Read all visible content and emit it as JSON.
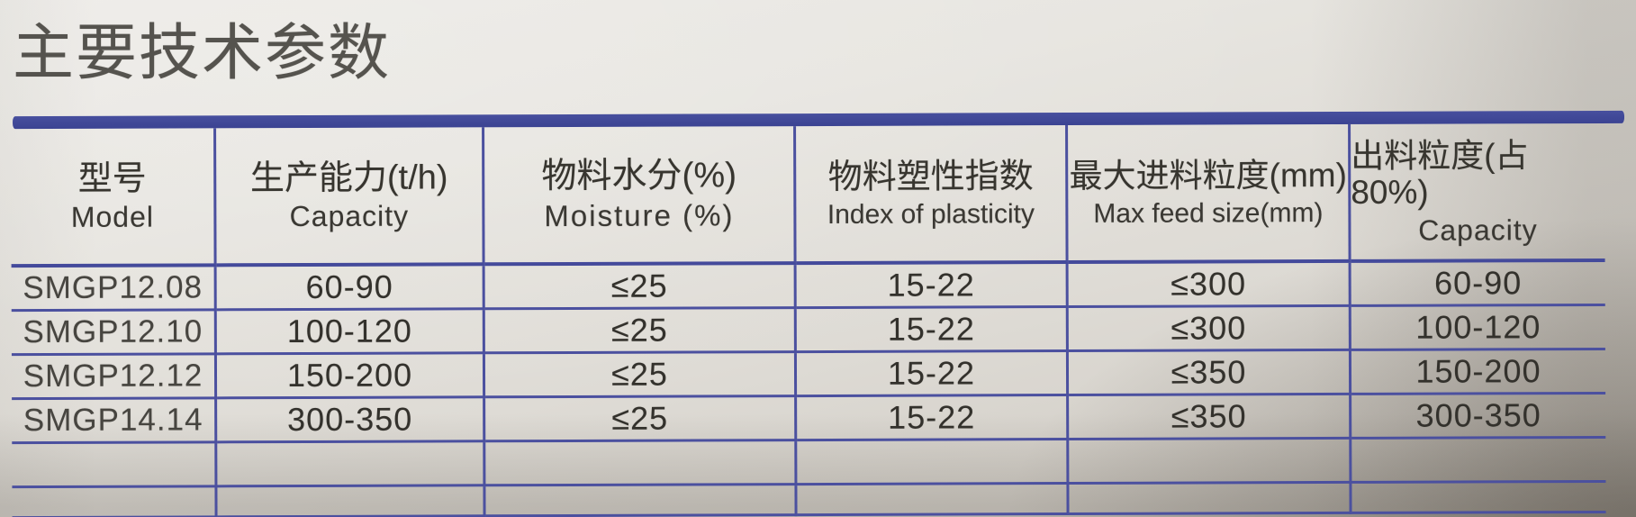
{
  "page": {
    "title": "主要技术参数"
  },
  "table": {
    "columns": [
      {
        "zh": "型号",
        "en": "Model"
      },
      {
        "zh": "生产能力(t/h)",
        "en": "Capacity"
      },
      {
        "zh": "物料水分(%)",
        "en": "Moisture (%)"
      },
      {
        "zh": "物料塑性指数",
        "en": "Index of plasticity"
      },
      {
        "zh": "最大进料粒度(mm)",
        "en": "Max feed size(mm)"
      },
      {
        "zh": "出料粒度(占80%)",
        "en": "Capacity"
      }
    ],
    "rows": [
      [
        "SMGP12.08",
        "60-90",
        "≤25",
        "15-22",
        "≤300",
        "60-90"
      ],
      [
        "SMGP12.10",
        "100-120",
        "≤25",
        "15-22",
        "≤300",
        "100-120"
      ],
      [
        "SMGP12.12",
        "150-200",
        "≤25",
        "15-22",
        "≤350",
        "150-200"
      ],
      [
        "SMGP14.14",
        "300-350",
        "≤25",
        "15-22",
        "≤350",
        "300-350"
      ],
      [
        "",
        "",
        "",
        "",
        "",
        ""
      ],
      [
        "",
        "",
        "",
        "",
        "",
        ""
      ]
    ]
  },
  "colors": {
    "paper": "#e7e5e0",
    "grid_line": "#4b509f",
    "top_bar": "#3e4796",
    "text": "#34322d",
    "title_text": "#55534e"
  }
}
